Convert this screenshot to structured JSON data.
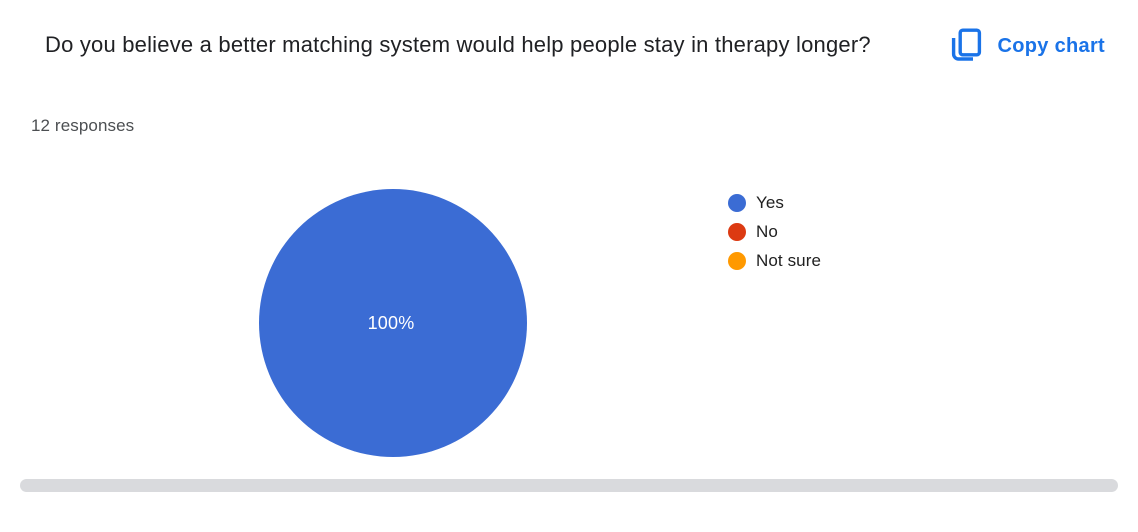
{
  "header": {
    "title": "Do you believe a better matching system would help people stay in therapy longer?",
    "responses_count": "12 responses",
    "copy_chart_label": "Copy chart"
  },
  "icons": {
    "copy_chart_icon": "copy-icon"
  },
  "colors": {
    "accent_blue": "#1a73e8",
    "title_text": "#202124",
    "secondary_text": "#4c4f52",
    "legend_text": "#212121",
    "pie_yes_blue": "#3b6cd4",
    "no_red": "#dc3a12",
    "not_sure_orange": "#ff9900",
    "scrollbar_gray": "#d9dadd",
    "background": "#ffffff"
  },
  "chart_data": {
    "type": "pie",
    "title": "Do you believe a better matching system would help people stay in therapy longer?",
    "subtitle": "12 responses",
    "total_responses": 12,
    "categories": [
      "Yes",
      "No",
      "Not sure"
    ],
    "values": [
      12,
      0,
      0
    ],
    "percentages": [
      100,
      0,
      0
    ],
    "slice_label": "100%",
    "colors": [
      "#3b6cd4",
      "#dc3a12",
      "#ff9900"
    ],
    "legend_position": "right",
    "legend_items": [
      {
        "label": "Yes",
        "color": "#3b6cd4"
      },
      {
        "label": "No",
        "color": "#dc3a12"
      },
      {
        "label": "Not sure",
        "color": "#ff9900"
      }
    ]
  },
  "scrollbar": {
    "orientation": "horizontal"
  }
}
